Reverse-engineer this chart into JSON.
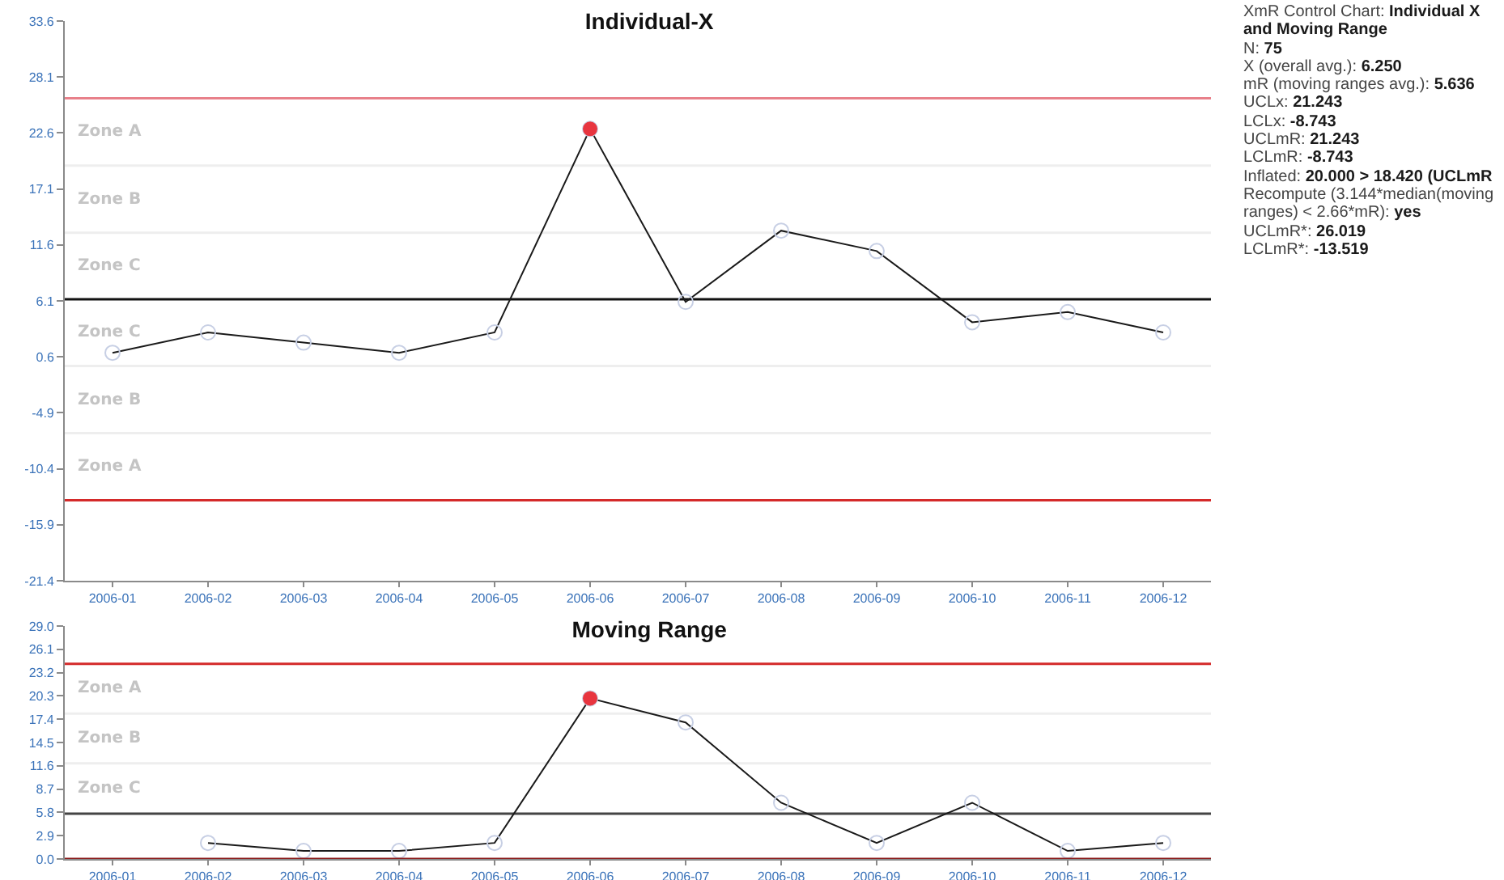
{
  "chart_data": [
    {
      "type": "line",
      "title": "Individual-X",
      "categories": [
        "2006-01",
        "2006-02",
        "2006-03",
        "2006-04",
        "2006-05",
        "2006-06",
        "2006-07",
        "2006-08",
        "2006-09",
        "2006-10",
        "2006-11",
        "2006-12"
      ],
      "marker": "circle",
      "series": [
        {
          "color": "#1a1a1a",
          "colors": [
            "#c7cfe4",
            "#c7cfe4",
            "#c7cfe4",
            "#c7cfe4",
            "#c7cfe4",
            "#c7cfe4",
            "#c7cfe4",
            "#c7cfe4",
            "#c7cfe4",
            "#c7cfe4",
            "#c7cfe4",
            "#c7cfe4"
          ],
          "values": [
            1,
            3,
            2,
            1,
            3,
            23,
            6,
            13,
            11,
            4,
            5,
            3
          ]
        },
        {
          "type": "scatter",
          "color": "#e8353f",
          "values": [
            null,
            null,
            null,
            null,
            null,
            23,
            null,
            null,
            null,
            null,
            null,
            null
          ]
        }
      ],
      "ylim": [
        -21.4,
        33.6
      ],
      "yticks": [
        -21.4,
        -15.9,
        -10.4,
        -4.9,
        0.6,
        6.1,
        11.6,
        17.1,
        22.6,
        28.1,
        33.6
      ],
      "ref_lines": [
        {
          "axis": "y",
          "value": 26.0,
          "color": "#e8808a"
        },
        {
          "axis": "y",
          "value": 19.4,
          "color": "#eeeeee"
        },
        {
          "axis": "y",
          "value": 12.8,
          "color": "#eeeeee"
        },
        {
          "axis": "y",
          "value": 6.25,
          "color": "#111111"
        },
        {
          "axis": "y",
          "value": -0.3,
          "color": "#eeeeee"
        },
        {
          "axis": "y",
          "value": -6.9,
          "color": "#eeeeee"
        },
        {
          "axis": "y",
          "value": -13.5,
          "color": "#d42a2a"
        }
      ],
      "annotations": [
        "Zone A",
        "Zone B",
        "Zone C",
        "Zone C",
        "Zone B",
        "Zone A"
      ]
    },
    {
      "type": "other",
      "annotations": [
        "XmR Control Chart: Individual X and Moving Range",
        "N: 75",
        "X (overall avg.): 6.250",
        "mR (moving ranges avg.): 5.636",
        "UCLx: 21.243",
        "LCLx: -8.743",
        "UCLmR: 21.243",
        "LCLmR: -8.743",
        "Inflated: 20.000 > 18.420 (UCLmR",
        "Recompute (3.144*median(moving ranges) < 2.66*mR): yes",
        "UCLmR*: 26.019",
        "LCLmR*: -13.519"
      ]
    },
    {
      "type": "line",
      "title": "Moving Range",
      "categories": [
        "2006-01",
        "2006-02",
        "2006-03",
        "2006-04",
        "2006-05",
        "2006-06",
        "2006-07",
        "2006-08",
        "2006-09",
        "2006-10",
        "2006-11",
        "2006-12"
      ],
      "marker": "circle",
      "series": [
        {
          "color": "#1a1a1a",
          "colors": [
            null,
            "#c7cfe4",
            "#c7cfe4",
            "#c7cfe4",
            "#c7cfe4",
            "#c7cfe4",
            "#c7cfe4",
            "#c7cfe4",
            "#c7cfe4",
            "#c7cfe4",
            "#c7cfe4",
            "#c7cfe4"
          ],
          "values": [
            null,
            2,
            1,
            1,
            2,
            20,
            17,
            7,
            2,
            7,
            1,
            2
          ]
        },
        {
          "type": "scatter",
          "color": "#e8353f",
          "values": [
            null,
            null,
            null,
            null,
            null,
            20,
            null,
            null,
            null,
            null,
            null,
            null
          ]
        }
      ],
      "ylim": [
        0,
        29
      ],
      "yticks": [
        {
          "value": 0,
          "label": "0.0"
        },
        2.9,
        5.8,
        8.7,
        11.6,
        14.5,
        17.4,
        20.3,
        23.2,
        26.1,
        {
          "value": 29,
          "label": "29.0"
        }
      ],
      "ref_lines": [
        {
          "axis": "y",
          "value": 24.3,
          "color": "#d42a2a"
        },
        {
          "axis": "y",
          "value": 18.1,
          "color": "#eeeeee"
        },
        {
          "axis": "y",
          "value": 11.9,
          "color": "#eeeeee"
        },
        {
          "axis": "y",
          "value": 5.64,
          "color": "#444444"
        },
        {
          "axis": "y",
          "value": 0,
          "color": "#8b1a1a"
        }
      ],
      "annotations": [
        "Zone A",
        "Zone B",
        "Zone C"
      ]
    }
  ]
}
